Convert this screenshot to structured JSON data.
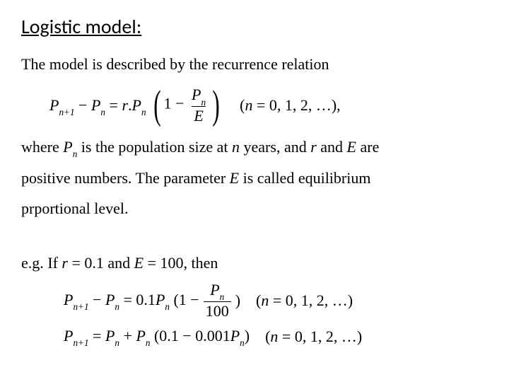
{
  "heading": "Logistic model:",
  "intro": "The model is described by the recurrence relation",
  "eq1": {
    "lhs_a": "P",
    "lhs_a_sub": "n+1",
    "minus": " − ",
    "lhs_b": "P",
    "lhs_b_sub": "n",
    "eq": " = ",
    "r": "r",
    "dot": ".",
    "p2": "P",
    "p2_sub": "n",
    "one_minus": "1 − ",
    "frac_num_sym": "P",
    "frac_num_sub": "n",
    "frac_den": "E",
    "index": "(n = 0, 1, 2, …),"
  },
  "where_1a": "where ",
  "where_Pn_sym": "P",
  "where_Pn_sub": "n",
  "where_1b": " is the population size at ",
  "where_n": "n",
  "where_1c": " years, and ",
  "where_r": "r",
  "where_1d": " and ",
  "where_E": "E",
  "where_1e": " are",
  "where_2a": "positive numbers. The parameter  ",
  "where_2E": "E",
  "where_2b": "  is called equilibrium",
  "where_3": "prportional level.",
  "eg_a": "e.g. If ",
  "eg_r": "r",
  "eg_b": " = 0.1 and ",
  "eg_E": "E",
  "eg_c": " = 100, then",
  "eq2": {
    "lhs_a": "P",
    "lhs_a_sub": "n+1",
    "minus": " − ",
    "lhs_b": "P",
    "lhs_b_sub": "n",
    "eq": " = 0.1",
    "p2": "P",
    "p2_sub": "n",
    "open": "(1 − ",
    "frac_num_sym": "P",
    "frac_num_sub": "n",
    "frac_den": "100",
    "close": ")",
    "index": "(n = 0, 1, 2, …)"
  },
  "eq3": {
    "lhs_a": "P",
    "lhs_a_sub": "n+1",
    "eq": " = ",
    "rhs_a": "P",
    "rhs_a_sub": "n",
    "plus": " + ",
    "rhs_b": "P",
    "rhs_b_sub": "n",
    "open": "(0.1 − 0.001",
    "rhs_c": "P",
    "rhs_c_sub": "n",
    "close": ")",
    "index": "(n = 0, 1, 2, …)"
  }
}
